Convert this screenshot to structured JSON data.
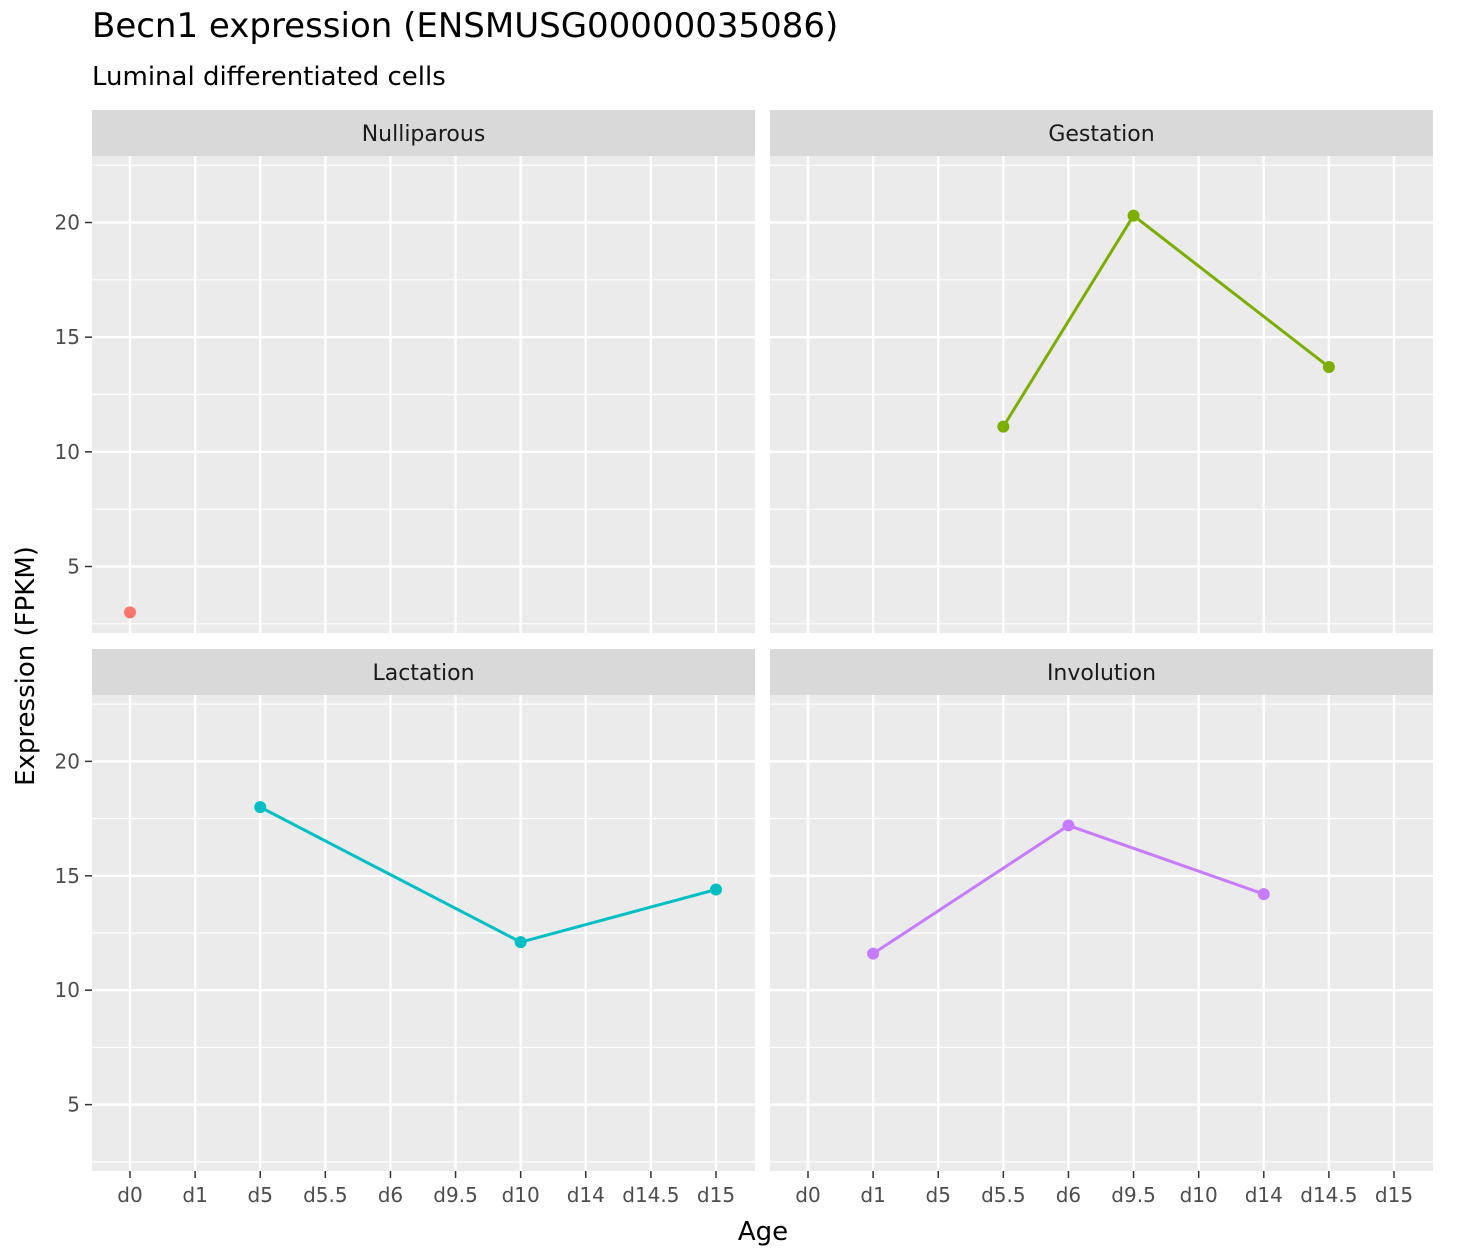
{
  "chart_data": {
    "type": "line",
    "title": "Becn1 expression (ENSMUSG00000035086)",
    "subtitle": "Luminal differentiated cells",
    "xlabel": "Age",
    "ylabel": "Expression (FPKM)",
    "categories": [
      "d0",
      "d1",
      "d5",
      "d5.5",
      "d6",
      "d9.5",
      "d10",
      "d14",
      "d14.5",
      "d15"
    ],
    "yticks": [
      5,
      10,
      15,
      20
    ],
    "ylim": [
      2.1,
      22.9
    ],
    "grid": true,
    "legend": "none",
    "facets": [
      {
        "name": "Nulliparous",
        "color": "#F8766D",
        "x": [
          "d0"
        ],
        "y": [
          3.0
        ]
      },
      {
        "name": "Gestation",
        "color": "#7CAE00",
        "x": [
          "d5.5",
          "d9.5",
          "d14.5"
        ],
        "y": [
          11.1,
          20.3,
          13.7
        ]
      },
      {
        "name": "Lactation",
        "color": "#00BFC4",
        "x": [
          "d5",
          "d10",
          "d15"
        ],
        "y": [
          18.0,
          12.1,
          14.4
        ]
      },
      {
        "name": "Involution",
        "color": "#C77CFF",
        "x": [
          "d1",
          "d6",
          "d14"
        ],
        "y": [
          11.6,
          17.2,
          14.2
        ]
      }
    ]
  }
}
